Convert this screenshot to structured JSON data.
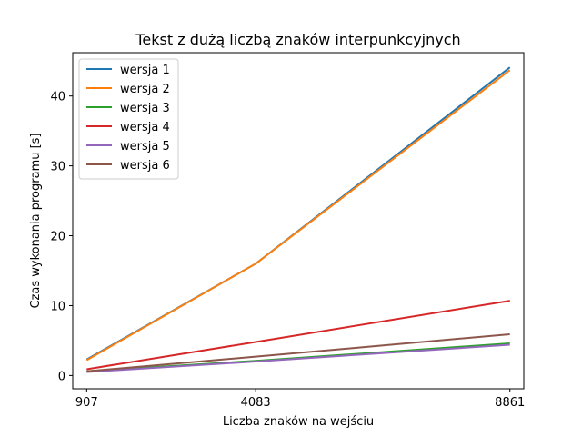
{
  "chart_data": {
    "type": "line",
    "title": "Tekst z dużą liczbą znaków interpunkcyjnych",
    "xlabel": "Liczba znaków na wejściu",
    "ylabel": "Czas wykonania programu [s]",
    "x": [
      907,
      4083,
      8861
    ],
    "xticks": [
      "907",
      "4083",
      "8861"
    ],
    "yticks": [
      0,
      10,
      20,
      30,
      40
    ],
    "xlim": [
      645,
      9122
    ],
    "ylim": [
      -1.9,
      46.2
    ],
    "grid": false,
    "legend_position": "top-left",
    "series": [
      {
        "name": "wersja 1",
        "color": "#1f77b4",
        "values": [
          2.3,
          16.0,
          44.1
        ]
      },
      {
        "name": "wersja 2",
        "color": "#ff7f0e",
        "values": [
          2.2,
          16.0,
          43.7
        ]
      },
      {
        "name": "wersja 3",
        "color": "#2ca02c",
        "values": [
          0.6,
          2.1,
          4.6
        ]
      },
      {
        "name": "wersja 4",
        "color": "#d62728",
        "values": [
          0.9,
          4.8,
          10.7
        ]
      },
      {
        "name": "wersja 5",
        "color": "#9467bd",
        "values": [
          0.5,
          2.0,
          4.4
        ]
      },
      {
        "name": "wersja 6",
        "color": "#8c564b",
        "values": [
          0.6,
          2.7,
          5.9
        ]
      }
    ]
  }
}
